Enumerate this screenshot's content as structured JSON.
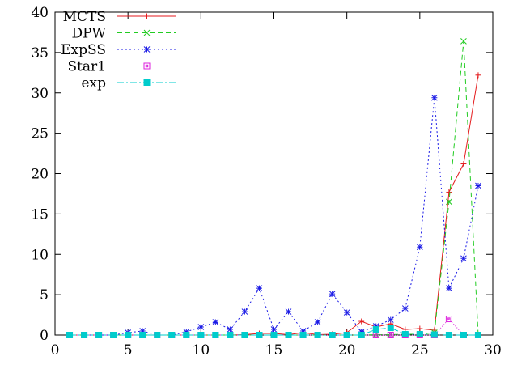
{
  "chart_data": {
    "type": "line",
    "title": "",
    "xlabel": "",
    "ylabel": "",
    "xlim": [
      0,
      30
    ],
    "ylim": [
      0,
      40
    ],
    "xticks": [
      0,
      5,
      10,
      15,
      20,
      25,
      30
    ],
    "yticks": [
      0,
      5,
      10,
      15,
      20,
      25,
      30,
      35,
      40
    ],
    "grid": false,
    "legend_position": "top-left",
    "x": [
      1,
      2,
      3,
      4,
      5,
      6,
      7,
      8,
      9,
      10,
      11,
      12,
      13,
      14,
      15,
      16,
      17,
      18,
      19,
      20,
      21,
      22,
      23,
      24,
      25,
      26,
      27,
      28,
      29
    ],
    "series": [
      {
        "name": "MCTS",
        "color": "#e41a1c",
        "dash": "",
        "marker": "plus",
        "values": [
          0,
          0,
          0,
          0,
          0,
          0,
          0,
          0,
          0,
          0,
          0,
          0,
          0.05,
          0.2,
          0.2,
          0.05,
          0.3,
          0.05,
          0.1,
          0.3,
          1.7,
          1.0,
          1.4,
          0.7,
          0.8,
          0.6,
          17.7,
          21.2,
          32.2
        ]
      },
      {
        "name": "DPW",
        "color": "#22cc22",
        "dash": "6,4",
        "marker": "cross",
        "values": [
          0,
          0,
          0,
          0,
          0,
          0,
          0,
          0,
          0,
          0,
          0,
          0,
          0,
          0,
          0,
          0,
          0,
          0,
          0,
          0,
          0,
          0.05,
          0.05,
          0.1,
          0.1,
          0.3,
          16.5,
          36.4,
          0
        ]
      },
      {
        "name": "ExpSS",
        "color": "#1a1ae6",
        "dash": "2,3",
        "marker": "star",
        "values": [
          0,
          0,
          0,
          0,
          0.3,
          0.5,
          0,
          0,
          0.4,
          1.0,
          1.6,
          0.7,
          2.9,
          5.8,
          0.7,
          2.9,
          0.5,
          1.6,
          5.1,
          2.8,
          0.4,
          1.1,
          1.9,
          3.3,
          10.9,
          29.4,
          5.8,
          9.5,
          18.5
        ]
      },
      {
        "name": "Star1",
        "color": "#dd22dd",
        "dash": "1,2",
        "marker": "square-open",
        "values": [
          0,
          0,
          0,
          0,
          0,
          0,
          0,
          0,
          0,
          0,
          0,
          0,
          0,
          0,
          0,
          0,
          0,
          0,
          0,
          0,
          0,
          0,
          0,
          0,
          0,
          0,
          2.0,
          0,
          0
        ]
      },
      {
        "name": "exp",
        "color": "#00cccc",
        "dash": "8,3,2,3",
        "marker": "square-filled",
        "values": [
          0,
          0,
          0,
          0,
          0,
          0,
          0,
          0,
          0,
          0,
          0,
          0,
          0,
          0,
          0,
          0,
          0,
          0,
          0,
          0,
          0,
          0.7,
          0.9,
          0.1,
          0.1,
          0.05,
          0,
          0,
          0
        ]
      }
    ]
  }
}
